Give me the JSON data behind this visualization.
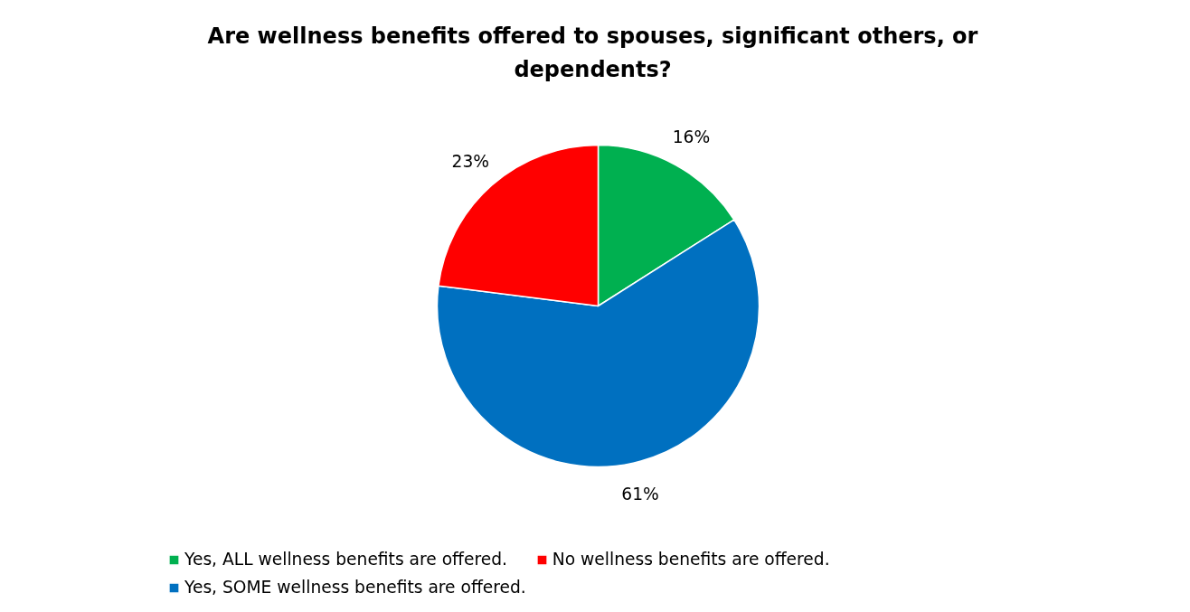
{
  "chart_data": {
    "type": "pie",
    "title": "Are wellness benefits offered to spouses, significant others, or dependents?",
    "categories": [
      "Yes, ALL wellness benefits are offered.",
      "Yes, SOME wellness benefits are offered.",
      "No wellness benefits are offered."
    ],
    "values": [
      16,
      61,
      23
    ],
    "colors": [
      "#00b050",
      "#0070c0",
      "#ff0000"
    ],
    "value_labels": [
      "16%",
      "61%",
      "23%"
    ],
    "legend": "bottom"
  }
}
